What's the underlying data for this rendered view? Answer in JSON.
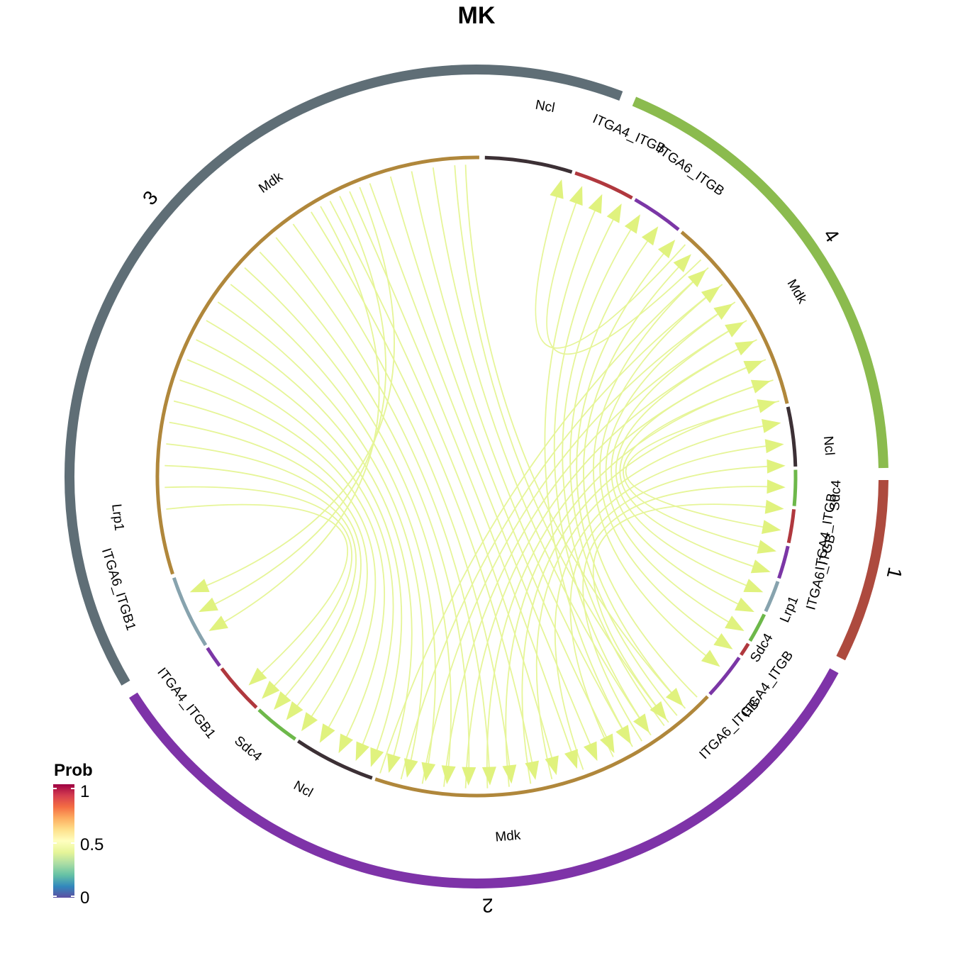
{
  "title": "MK",
  "colors": {
    "chord": "#E6F598",
    "arrow": "#E0F27E",
    "segment": {
      "Mdk": "#B0873B",
      "Ncl": "#3C3035",
      "Sdc4": "#6DB84A",
      "ITGA4_ITGB1": "#B0383E",
      "ITGA6_ITGB1": "#7B36A6",
      "Lrp1": "#87A3AE"
    }
  },
  "groups": [
    {
      "id": "1",
      "label": "1",
      "color": "#AD4A3E"
    },
    {
      "id": "2",
      "label": "2",
      "color": "#7E33A8"
    },
    {
      "id": "3",
      "label": "3",
      "color": "#5F6E76"
    },
    {
      "id": "4",
      "label": "4",
      "color": "#8BBB4E"
    }
  ],
  "sections": [
    {
      "id": "g4-Ncl",
      "group": "4",
      "label": "Ncl",
      "molecule": "Ncl"
    },
    {
      "id": "g4-ITGA4",
      "group": "4",
      "label": "ITGA4_ITGB",
      "molecule": "ITGA4_ITGB1"
    },
    {
      "id": "g4-ITGA6",
      "group": "4",
      "label": "ITGA6_ITGB",
      "molecule": "ITGA6_ITGB1"
    },
    {
      "id": "g4-Mdk",
      "group": "4",
      "label": "Mdk",
      "molecule": "Mdk"
    },
    {
      "id": "g4-Ncl2",
      "group": "4",
      "label": "Ncl",
      "molecule": "Ncl"
    },
    {
      "id": "g4-Sdc4",
      "group": "4",
      "label": "Sdc4",
      "molecule": "Sdc4"
    },
    {
      "id": "g1-ITGA4",
      "group": "1",
      "label": "ITGA4_ITGB",
      "molecule": "ITGA4_ITGB1"
    },
    {
      "id": "g1-ITGA6",
      "group": "1",
      "label": "ITGA6_ITGB",
      "molecule": "ITGA6_ITGB1"
    },
    {
      "id": "g1-Lrp1",
      "group": "1",
      "label": "Lrp1",
      "molecule": "Lrp1"
    },
    {
      "id": "g1-Sdc4",
      "group": "1",
      "label": "Sdc4",
      "molecule": "Sdc4"
    },
    {
      "id": "g2-ITGA4",
      "group": "2",
      "label": "ITGA4_ITGB",
      "molecule": "ITGA4_ITGB1"
    },
    {
      "id": "g2-ITGA6",
      "group": "2",
      "label": "ITGA6_ITGB",
      "molecule": "ITGA6_ITGB1"
    },
    {
      "id": "g2-Mdk",
      "group": "2",
      "label": "Mdk",
      "molecule": "Mdk"
    },
    {
      "id": "g2-Ncl",
      "group": "2",
      "label": "Ncl",
      "molecule": "Ncl"
    },
    {
      "id": "g2-Sdc4",
      "group": "2",
      "label": "Sdc4",
      "molecule": "Sdc4"
    },
    {
      "id": "g2-ITGA4b",
      "group": "2",
      "label": "ITGA4_ITGB1",
      "molecule": "ITGA4_ITGB1"
    },
    {
      "id": "g3-ITGA6",
      "group": "3",
      "label": "ITGA6_ITGB1",
      "molecule": "ITGA6_ITGB1"
    },
    {
      "id": "g3-Lrp1",
      "group": "3",
      "label": "Lrp1",
      "molecule": "Lrp1"
    },
    {
      "id": "g3-Mdk",
      "group": "3",
      "label": "Mdk",
      "molecule": "Mdk"
    }
  ],
  "legend": {
    "title": "Prob",
    "ticks": [
      "1",
      "0.5",
      "0"
    ]
  }
}
